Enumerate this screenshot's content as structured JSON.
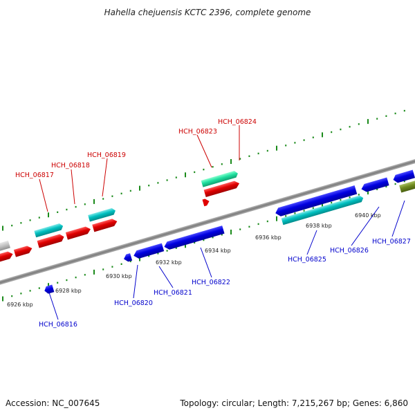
{
  "title": "Hahella chejuensis KCTC 2396, complete genome",
  "footer": {
    "accession": "Accession: NC_007645",
    "summary": "Topology: circular; Length: 7,215,267 bp; Genes: 6,860"
  },
  "colors": {
    "plus_strand_gene": "#e00000",
    "plus_strand_rna": "#00b8b8",
    "minus_strand_gene": "#0000e0",
    "minus_strand_rna": "#00b8b8",
    "upper_label": "#cc0000",
    "lower_label": "#0000cc",
    "tick": "#1a8a1a",
    "backbone": "#8a8a8a"
  },
  "ticks": [
    "6926 kbp",
    "6928 kbp",
    "6930 kbp",
    "6932 kbp",
    "6934 kbp",
    "6936 kbp",
    "6938 kbp",
    "6940 kbp"
  ],
  "upper_genes": [
    "HCH_06817",
    "HCH_06818",
    "HCH_06819",
    "HCH_06823",
    "HCH_06824"
  ],
  "lower_genes": [
    "HCH_06816",
    "HCH_06820",
    "HCH_06821",
    "HCH_06822",
    "HCH_06825",
    "HCH_06826",
    "HCH_06827"
  ]
}
